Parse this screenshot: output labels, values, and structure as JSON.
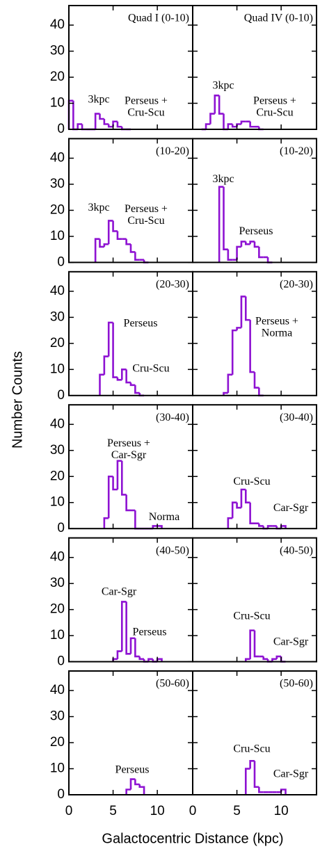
{
  "y_label": "Number Counts",
  "x_label": "Galactocentric Distance (kpc)",
  "chart_data": [
    {
      "type": "histogram",
      "title": "Quad I (0-10)",
      "color": "#8e12d2",
      "xlim": [
        0,
        14
      ],
      "ylim": [
        0,
        47.5
      ],
      "xticks": [
        0,
        5,
        10
      ],
      "yticks": [
        0,
        10,
        20,
        30,
        40
      ],
      "bins": [
        0,
        0.5,
        1,
        1.5,
        2,
        2.5,
        3,
        3.5,
        4,
        4.5,
        5,
        5.5,
        6,
        6.5,
        7
      ],
      "values": [
        11,
        0,
        2,
        0,
        0,
        0,
        6,
        4,
        2,
        1,
        3,
        1,
        0,
        0
      ],
      "annotations": [
        [
          "3kpc"
        ],
        [
          "Perseus +",
          "Cru-Scu"
        ]
      ]
    },
    {
      "type": "histogram",
      "title": "Quad IV (0-10)",
      "color": "#8e12d2",
      "xlim": [
        0,
        14
      ],
      "ylim": [
        0,
        47.5
      ],
      "xticks": [
        0,
        5,
        10
      ],
      "yticks": [
        0,
        10,
        20,
        30,
        40
      ],
      "bins": [
        1,
        1.5,
        2,
        2.5,
        3,
        3.5,
        4,
        4.5,
        5,
        5.5,
        6,
        6.5,
        7,
        7.5,
        8
      ],
      "values": [
        0,
        2,
        6,
        13,
        6,
        0,
        2,
        1,
        2,
        3,
        3,
        1,
        1,
        0
      ],
      "annotations": [
        [
          "3kpc"
        ],
        [
          "Perseus +",
          "Cru-Scu"
        ]
      ]
    },
    {
      "type": "histogram",
      "title": "(10-20)",
      "color": "#8e12d2",
      "xlim": [
        0,
        14
      ],
      "ylim": [
        0,
        47.5
      ],
      "xticks": [
        0,
        5,
        10
      ],
      "yticks": [
        0,
        10,
        20,
        30,
        40
      ],
      "bins": [
        3,
        3.5,
        4,
        4.5,
        5,
        5.5,
        6,
        6.5,
        7,
        7.5,
        8,
        8.5,
        9
      ],
      "values": [
        9,
        6,
        7,
        16,
        12,
        9,
        9,
        7,
        4,
        1,
        1,
        0
      ],
      "annotations": [
        [
          "3kpc"
        ],
        [
          "Perseus +",
          "Cru-Scu"
        ]
      ]
    },
    {
      "type": "histogram",
      "title": "(10-20)",
      "color": "#8e12d2",
      "xlim": [
        0,
        14
      ],
      "ylim": [
        0,
        47.5
      ],
      "xticks": [
        0,
        5,
        10
      ],
      "yticks": [
        0,
        10,
        20,
        30,
        40
      ],
      "bins": [
        3,
        3.5,
        4,
        4.5,
        5,
        5.5,
        6,
        6.5,
        7,
        7.5,
        8,
        8.5,
        9
      ],
      "values": [
        29,
        5,
        1,
        1,
        6,
        8,
        7,
        8,
        6,
        2,
        2,
        0
      ],
      "annotations": [
        [
          "3kpc"
        ],
        [
          "Perseus"
        ]
      ]
    },
    {
      "type": "histogram",
      "title": "(20-30)",
      "color": "#8e12d2",
      "xlim": [
        0,
        14
      ],
      "ylim": [
        0,
        47.5
      ],
      "xticks": [
        0,
        5,
        10
      ],
      "yticks": [
        0,
        10,
        20,
        30,
        40
      ],
      "bins": [
        3.5,
        4,
        4.5,
        5,
        5.5,
        6,
        6.5,
        7,
        7.5,
        8,
        8.5
      ],
      "values": [
        8,
        15,
        28,
        7,
        6,
        10,
        5,
        4,
        1,
        0
      ],
      "annotations": [
        [
          "Perseus"
        ],
        [
          "Cru-Scu"
        ]
      ]
    },
    {
      "type": "histogram",
      "title": "(20-30)",
      "color": "#8e12d2",
      "xlim": [
        0,
        14
      ],
      "ylim": [
        0,
        47.5
      ],
      "xticks": [
        0,
        5,
        10
      ],
      "yticks": [
        0,
        10,
        20,
        30,
        40
      ],
      "bins": [
        3.5,
        4,
        4.5,
        5,
        5.5,
        6,
        6.5,
        7,
        7.5,
        8
      ],
      "values": [
        1,
        8,
        25,
        26,
        38,
        29,
        9,
        3,
        0
      ],
      "annotations": [
        [
          "Perseus +",
          "Norma"
        ]
      ]
    },
    {
      "type": "histogram",
      "title": "(30-40)",
      "color": "#8e12d2",
      "xlim": [
        0,
        14
      ],
      "ylim": [
        0,
        47.5
      ],
      "xticks": [
        0,
        5,
        10
      ],
      "yticks": [
        0,
        10,
        20,
        30,
        40
      ],
      "bins": [
        4,
        4.5,
        5,
        5.5,
        6,
        6.5,
        7,
        7.5,
        8,
        8.5,
        9,
        9.5,
        10,
        10.5
      ],
      "values": [
        4,
        20,
        15,
        26,
        13,
        7,
        7,
        0,
        0,
        0,
        0,
        1,
        1
      ],
      "annotations": [
        [
          "Perseus +",
          "Car-Sgr"
        ],
        [
          "Norma"
        ]
      ]
    },
    {
      "type": "histogram",
      "title": "(30-40)",
      "color": "#8e12d2",
      "xlim": [
        0,
        14
      ],
      "ylim": [
        0,
        47.5
      ],
      "xticks": [
        0,
        5,
        10
      ],
      "yticks": [
        0,
        10,
        20,
        30,
        40
      ],
      "bins": [
        4,
        4.5,
        5,
        5.5,
        6,
        6.5,
        7,
        7.5,
        8,
        8.5,
        9,
        9.5,
        10,
        10.5
      ],
      "values": [
        4,
        10,
        8,
        15,
        10,
        2,
        2,
        1,
        0,
        1,
        1,
        0,
        1
      ],
      "annotations": [
        [
          "Cru-Scu"
        ],
        [
          "Car-Sgr"
        ]
      ]
    },
    {
      "type": "histogram",
      "title": "(40-50)",
      "color": "#8e12d2",
      "xlim": [
        0,
        14
      ],
      "ylim": [
        0,
        47.5
      ],
      "xticks": [
        0,
        5,
        10
      ],
      "yticks": [
        0,
        10,
        20,
        30,
        40
      ],
      "bins": [
        5,
        5.5,
        6,
        6.5,
        7,
        7.5,
        8,
        8.5,
        9,
        9.5,
        10,
        10.5
      ],
      "values": [
        1,
        4,
        23,
        3,
        9,
        2,
        1,
        0,
        1,
        0,
        1
      ],
      "annotations": [
        [
          "Car-Sgr"
        ],
        [
          "Perseus"
        ]
      ]
    },
    {
      "type": "histogram",
      "title": "(40-50)",
      "color": "#8e12d2",
      "xlim": [
        0,
        14
      ],
      "ylim": [
        0,
        47.5
      ],
      "xticks": [
        0,
        5,
        10
      ],
      "yticks": [
        0,
        10,
        20,
        30,
        40
      ],
      "bins": [
        6,
        6.5,
        7,
        7.5,
        8,
        8.5,
        9,
        9.5,
        10,
        10.5
      ],
      "values": [
        1,
        12,
        2,
        2,
        1,
        0,
        1,
        2,
        0
      ],
      "annotations": [
        [
          "Cru-Scu"
        ],
        [
          "Car-Sgr"
        ]
      ]
    },
    {
      "type": "histogram",
      "title": "(50-60)",
      "color": "#8e12d2",
      "xlim": [
        0,
        14
      ],
      "ylim": [
        0,
        47.5
      ],
      "xticks": [
        0,
        5,
        10
      ],
      "yticks": [
        0,
        10,
        20,
        30,
        40
      ],
      "bins": [
        6.5,
        7,
        7.5,
        8,
        8.5
      ],
      "values": [
        2,
        6,
        4,
        3
      ],
      "annotations": [
        [
          "Perseus"
        ]
      ]
    },
    {
      "type": "histogram",
      "title": "(50-60)",
      "color": "#8e12d2",
      "xlim": [
        0,
        14
      ],
      "ylim": [
        0,
        47.5
      ],
      "xticks": [
        0,
        5,
        10
      ],
      "yticks": [
        0,
        10,
        20,
        30,
        40
      ],
      "bins": [
        6,
        6.5,
        7,
        7.5,
        8,
        8.5,
        9,
        9.5,
        10,
        10.5
      ],
      "values": [
        10,
        13,
        3,
        1,
        1,
        1,
        1,
        1,
        2
      ],
      "annotations": [
        [
          "Cru-Scu"
        ],
        [
          "Car-Sgr"
        ]
      ]
    }
  ]
}
